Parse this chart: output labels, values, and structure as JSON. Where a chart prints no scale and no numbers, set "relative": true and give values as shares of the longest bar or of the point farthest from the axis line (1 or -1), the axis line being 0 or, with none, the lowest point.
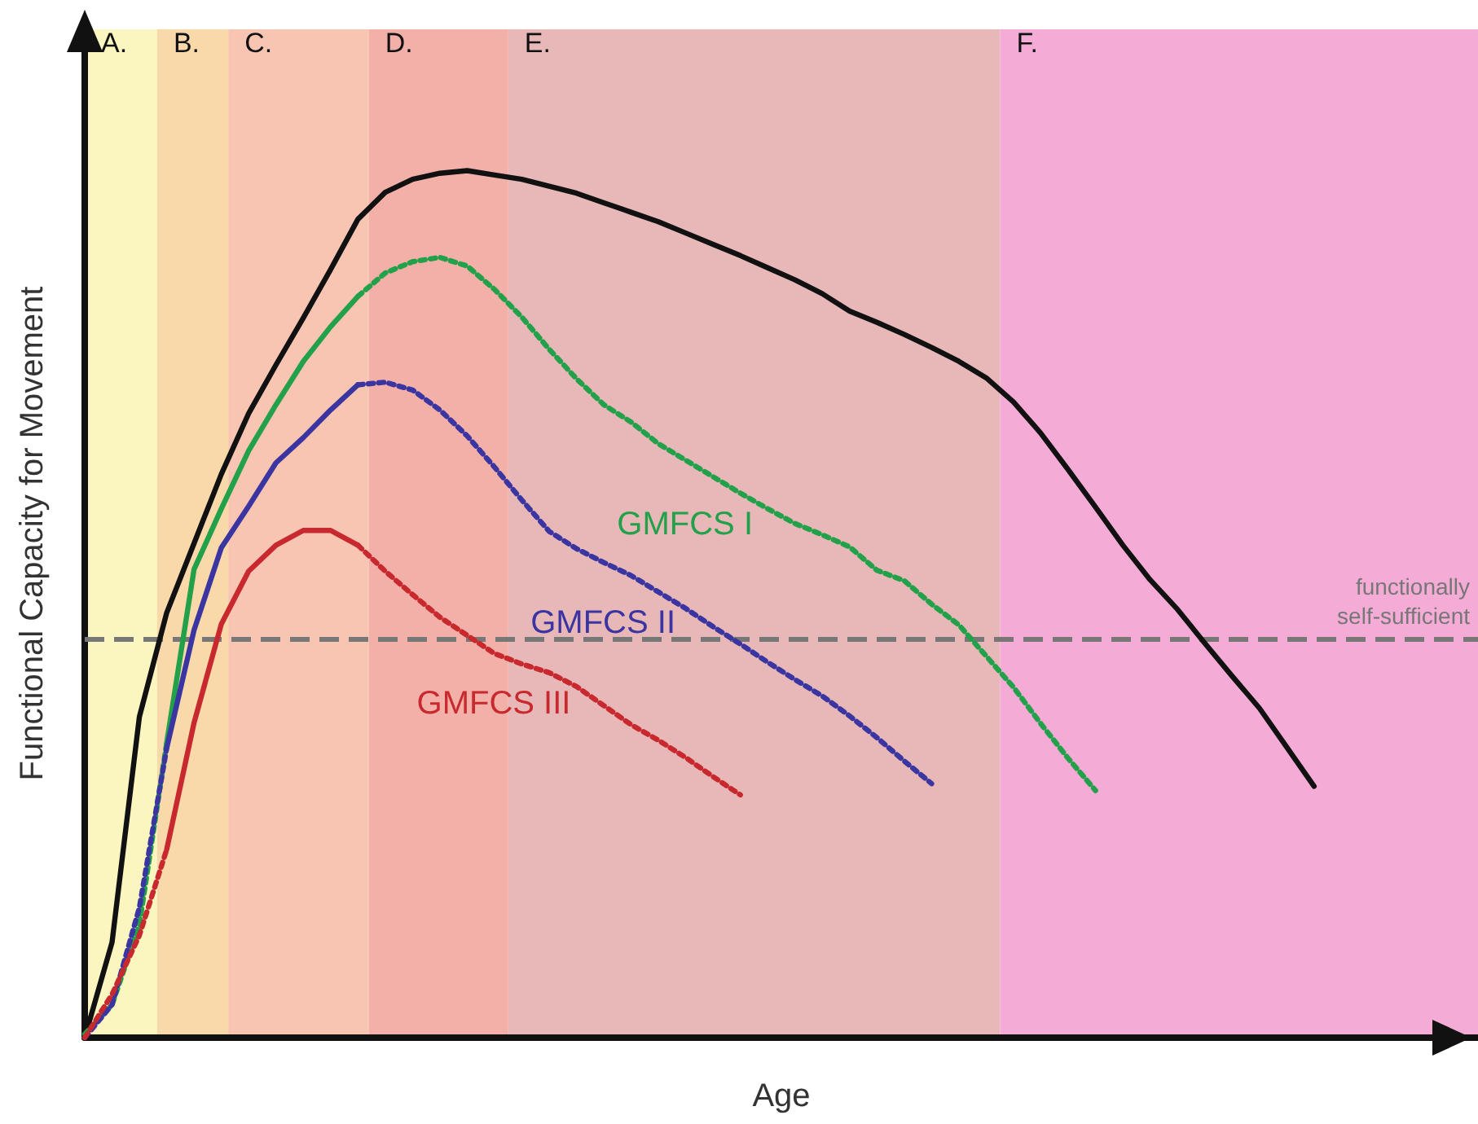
{
  "chart_data": {
    "type": "line",
    "relative": true,
    "xlabel": "Age",
    "ylabel": "Functional Capacity for Movement",
    "marker": "none",
    "categories": [
      null,
      null,
      null,
      null,
      null,
      null,
      null,
      null,
      null,
      null,
      null,
      null,
      null,
      null,
      null,
      null,
      null,
      null,
      null,
      null,
      null,
      null,
      null,
      null,
      null,
      null,
      null,
      null,
      null,
      null,
      null,
      null,
      null,
      null,
      null,
      null,
      null,
      null,
      null,
      null,
      null,
      null,
      null,
      null,
      null,
      null,
      null,
      null,
      null,
      null,
      null,
      null
    ],
    "series": [
      {
        "color": "#111111",
        "line_style": "solid",
        "values": [
          0,
          0.11,
          0.37,
          0.49,
          0.57,
          0.65,
          0.72,
          0.776,
          0.83,
          0.886,
          0.944,
          0.975,
          0.99,
          0.997,
          1,
          0.995,
          0.99,
          0.982,
          0.974,
          0.963,
          0.952,
          0.941,
          0.928,
          0.915,
          0.902,
          0.888,
          0.874,
          0.858,
          0.838,
          0.825,
          0.811,
          0.796,
          0.78,
          0.761,
          0.733,
          0.697,
          0.655,
          0.612,
          0.568,
          0.528,
          0.494,
          0.455,
          0.417,
          0.38,
          0.335,
          0.29,
          null,
          null,
          null,
          null,
          null,
          null
        ]
      },
      {
        "color": "#22a04a",
        "line_style": "dotted",
        "values": [
          0.004,
          0.038,
          0.13,
          0.34,
          null,
          null,
          null,
          null,
          null,
          null,
          null,
          null,
          null,
          null,
          null,
          null,
          null,
          null,
          null,
          null,
          null,
          null,
          null,
          null,
          null,
          null,
          null,
          null,
          null,
          null,
          null,
          null,
          null,
          null,
          null,
          null,
          null,
          null,
          null,
          null,
          null,
          null,
          null,
          null,
          null,
          null,
          null,
          null,
          null,
          null,
          null,
          null
        ]
      },
      {
        "color": "#22a04a",
        "line_style": "solid",
        "values": [
          null,
          null,
          null,
          0.34,
          0.54,
          0.61,
          0.677,
          0.73,
          0.78,
          0.82,
          0.855,
          null,
          null,
          null,
          null,
          null,
          null,
          null,
          null,
          null,
          null,
          null,
          null,
          null,
          null,
          null,
          null,
          null,
          null,
          null,
          null,
          null,
          null,
          null,
          null,
          null,
          null,
          null,
          null,
          null,
          null,
          null,
          null,
          null,
          null,
          null,
          null,
          null,
          null,
          null,
          null,
          null
        ]
      },
      {
        "name": "GMFCS I",
        "color": "#22a04a",
        "line_style": "dotted",
        "values": [
          null,
          null,
          null,
          null,
          null,
          null,
          null,
          null,
          null,
          null,
          0.855,
          0.882,
          0.895,
          0.9,
          0.89,
          0.863,
          0.831,
          0.794,
          0.76,
          0.73,
          0.71,
          0.685,
          0.666,
          0.647,
          0.628,
          0.61,
          0.593,
          0.58,
          0.566,
          0.539,
          0.527,
          0.5,
          0.476,
          0.44,
          0.404,
          0.362,
          0.322,
          0.285,
          null,
          null,
          null,
          null,
          null,
          null,
          null,
          null,
          null,
          null,
          null,
          null,
          null,
          null
        ]
      },
      {
        "color": "#3a35a0",
        "line_style": "dotted",
        "values": [
          0,
          0.038,
          0.15,
          0.334,
          null,
          null,
          null,
          null,
          null,
          null,
          null,
          null,
          null,
          null,
          null,
          null,
          null,
          null,
          null,
          null,
          null,
          null,
          null,
          null,
          null,
          null,
          null,
          null,
          null,
          null,
          null,
          null,
          null,
          null,
          null,
          null,
          null,
          null,
          null,
          null,
          null,
          null,
          null,
          null,
          null,
          null,
          null,
          null,
          null,
          null,
          null,
          null
        ]
      },
      {
        "color": "#3a35a0",
        "line_style": "solid",
        "values": [
          null,
          null,
          null,
          0.334,
          0.47,
          0.565,
          0.613,
          0.663,
          0.692,
          0.724,
          0.753,
          null,
          null,
          null,
          null,
          null,
          null,
          null,
          null,
          null,
          null,
          null,
          null,
          null,
          null,
          null,
          null,
          null,
          null,
          null,
          null,
          null,
          null,
          null,
          null,
          null,
          null,
          null,
          null,
          null,
          null,
          null,
          null,
          null,
          null,
          null,
          null,
          null,
          null,
          null,
          null,
          null
        ]
      },
      {
        "name": "GMFCS II",
        "color": "#3a35a0",
        "line_style": "dotted",
        "values": [
          null,
          null,
          null,
          null,
          null,
          null,
          null,
          null,
          null,
          null,
          0.753,
          0.756,
          0.747,
          0.724,
          0.694,
          0.658,
          0.62,
          0.584,
          0.564,
          0.548,
          0.533,
          0.514,
          0.495,
          0.474,
          0.454,
          0.433,
          0.413,
          0.394,
          0.371,
          0.346,
          0.319,
          0.293,
          null,
          null,
          null,
          null,
          null,
          null,
          null,
          null,
          null,
          null,
          null,
          null,
          null,
          null,
          null,
          null,
          null,
          null,
          null,
          null
        ]
      },
      {
        "color": "#c8292e",
        "line_style": "dotted",
        "values": [
          0,
          0.05,
          0.118,
          0.217,
          null,
          null,
          null,
          null,
          null,
          null,
          null,
          null,
          null,
          null,
          null,
          null,
          null,
          null,
          null,
          null,
          null,
          null,
          null,
          null,
          null,
          null,
          null,
          null,
          null,
          null,
          null,
          null,
          null,
          null,
          null,
          null,
          null,
          null,
          null,
          null,
          null,
          null,
          null,
          null,
          null,
          null,
          null,
          null,
          null,
          null,
          null,
          null
        ]
      },
      {
        "color": "#c8292e",
        "line_style": "solid",
        "values": [
          null,
          null,
          null,
          0.217,
          0.363,
          0.477,
          0.538,
          0.568,
          0.585,
          0.585,
          0.568,
          null,
          null,
          null,
          null,
          null,
          null,
          null,
          null,
          null,
          null,
          null,
          null,
          null,
          null,
          null,
          null,
          null,
          null,
          null,
          null,
          null,
          null,
          null,
          null,
          null,
          null,
          null,
          null,
          null,
          null,
          null,
          null,
          null,
          null,
          null,
          null,
          null,
          null,
          null,
          null,
          null
        ]
      },
      {
        "name": "GMFCS III",
        "color": "#c8292e",
        "line_style": "dotted",
        "values": [
          null,
          null,
          null,
          null,
          null,
          null,
          null,
          null,
          null,
          null,
          0.568,
          0.538,
          0.511,
          0.485,
          0.464,
          0.443,
          0.431,
          0.421,
          0.405,
          0.383,
          0.361,
          0.343,
          0.323,
          0.301,
          0.28,
          null,
          null,
          null,
          null,
          null,
          null,
          null,
          null,
          null,
          null,
          null,
          null,
          null,
          null,
          null,
          null,
          null,
          null,
          null,
          null,
          null,
          null,
          null,
          null,
          null,
          null,
          null
        ]
      }
    ],
    "annotations": [
      "A.",
      "B.",
      "C.",
      "D.",
      "E.",
      "F."
    ],
    "ref_lines": [
      {
        "axis": "y",
        "value": 0.46,
        "label": "functionally\nself-sufficient",
        "color": "#777777",
        "line_style": "dashed"
      }
    ]
  }
}
